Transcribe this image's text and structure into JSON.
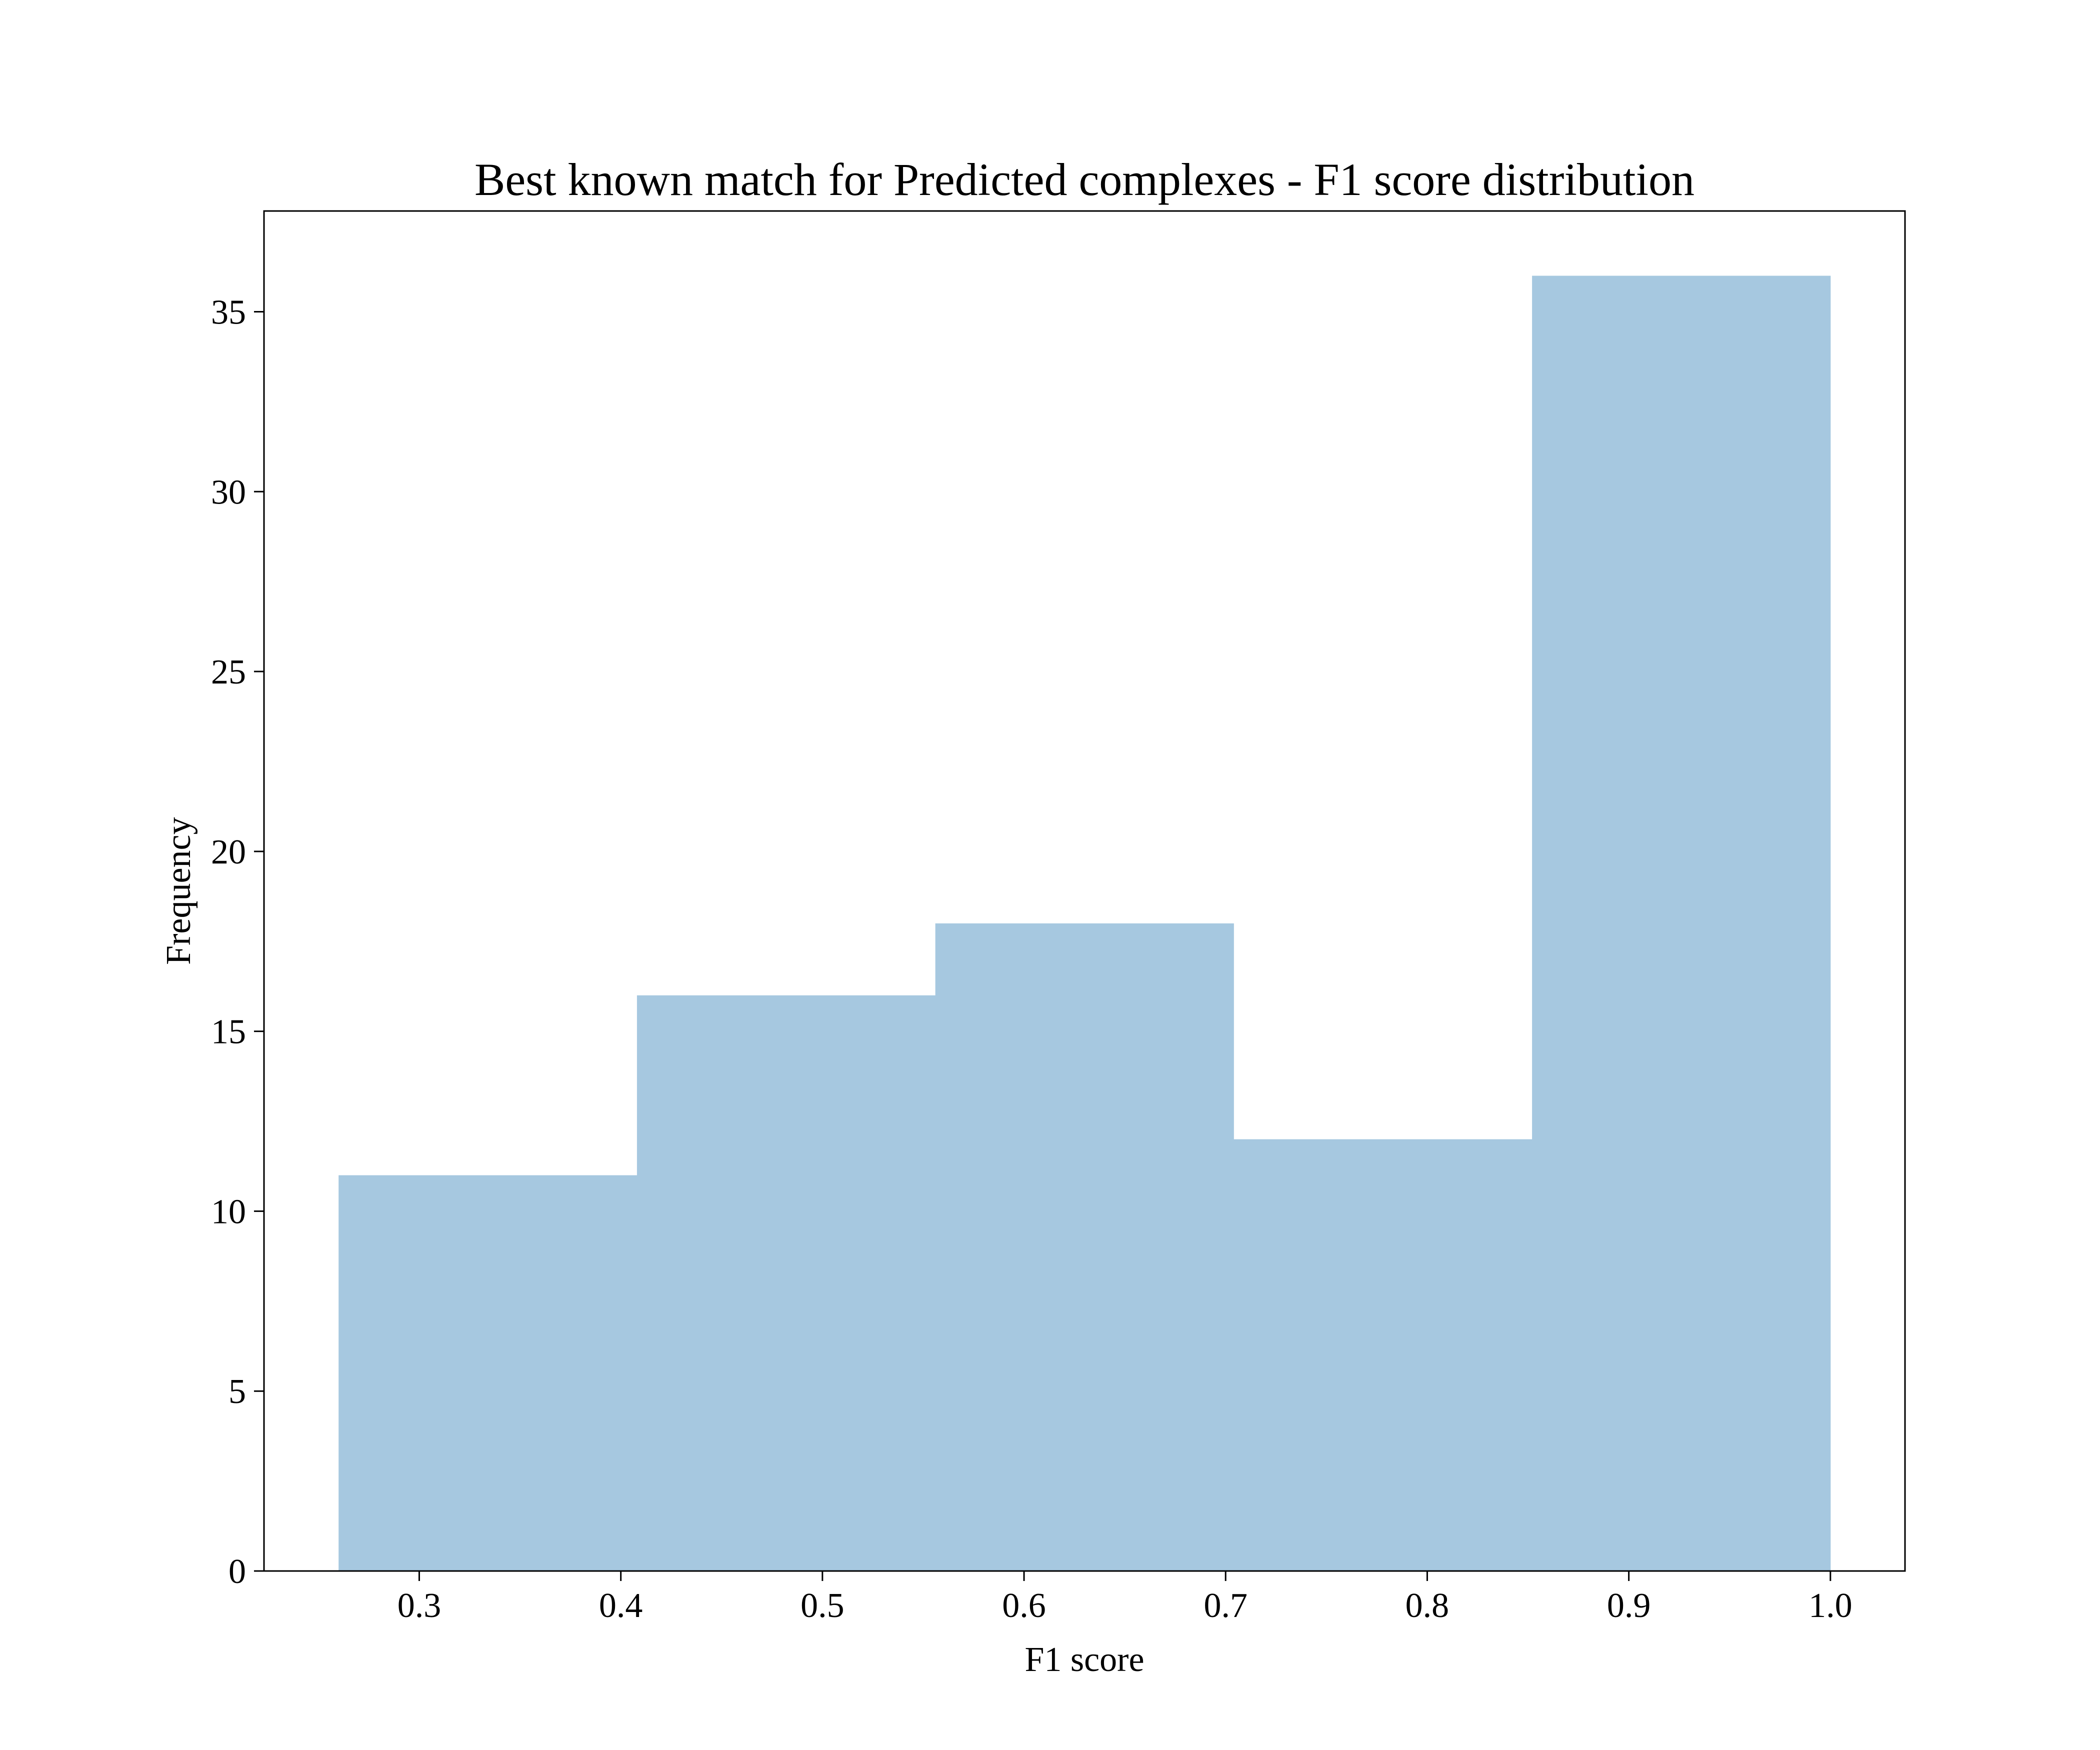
{
  "chart_data": {
    "type": "bar",
    "title": "Best known match for Predicted complexes - F1 score distribution",
    "xlabel": "F1 score",
    "ylabel": "Frequency",
    "xlim": [
      0.223,
      1.037
    ],
    "ylim": [
      0,
      37.8
    ],
    "grid": false,
    "legend": "none",
    "xticks": [
      0.3,
      0.4,
      0.5,
      0.6,
      0.7,
      0.8,
      0.9,
      1.0
    ],
    "xtick_labels": [
      "0.3",
      "0.4",
      "0.5",
      "0.6",
      "0.7",
      "0.8",
      "0.9",
      "1.0"
    ],
    "yticks": [
      0,
      5,
      10,
      15,
      20,
      25,
      30,
      35
    ],
    "ytick_labels": [
      "0",
      "5",
      "10",
      "15",
      "20",
      "25",
      "30",
      "35"
    ],
    "bins": [
      {
        "x0": 0.26,
        "x1": 0.408,
        "count": 11
      },
      {
        "x0": 0.408,
        "x1": 0.556,
        "count": 16
      },
      {
        "x0": 0.556,
        "x1": 0.704,
        "count": 18
      },
      {
        "x0": 0.704,
        "x1": 0.852,
        "count": 12
      },
      {
        "x0": 0.852,
        "x1": 1.0,
        "count": 36
      }
    ],
    "colors": {
      "bar": "#a6c8e0",
      "axes": "#000000",
      "background": "#ffffff"
    }
  }
}
